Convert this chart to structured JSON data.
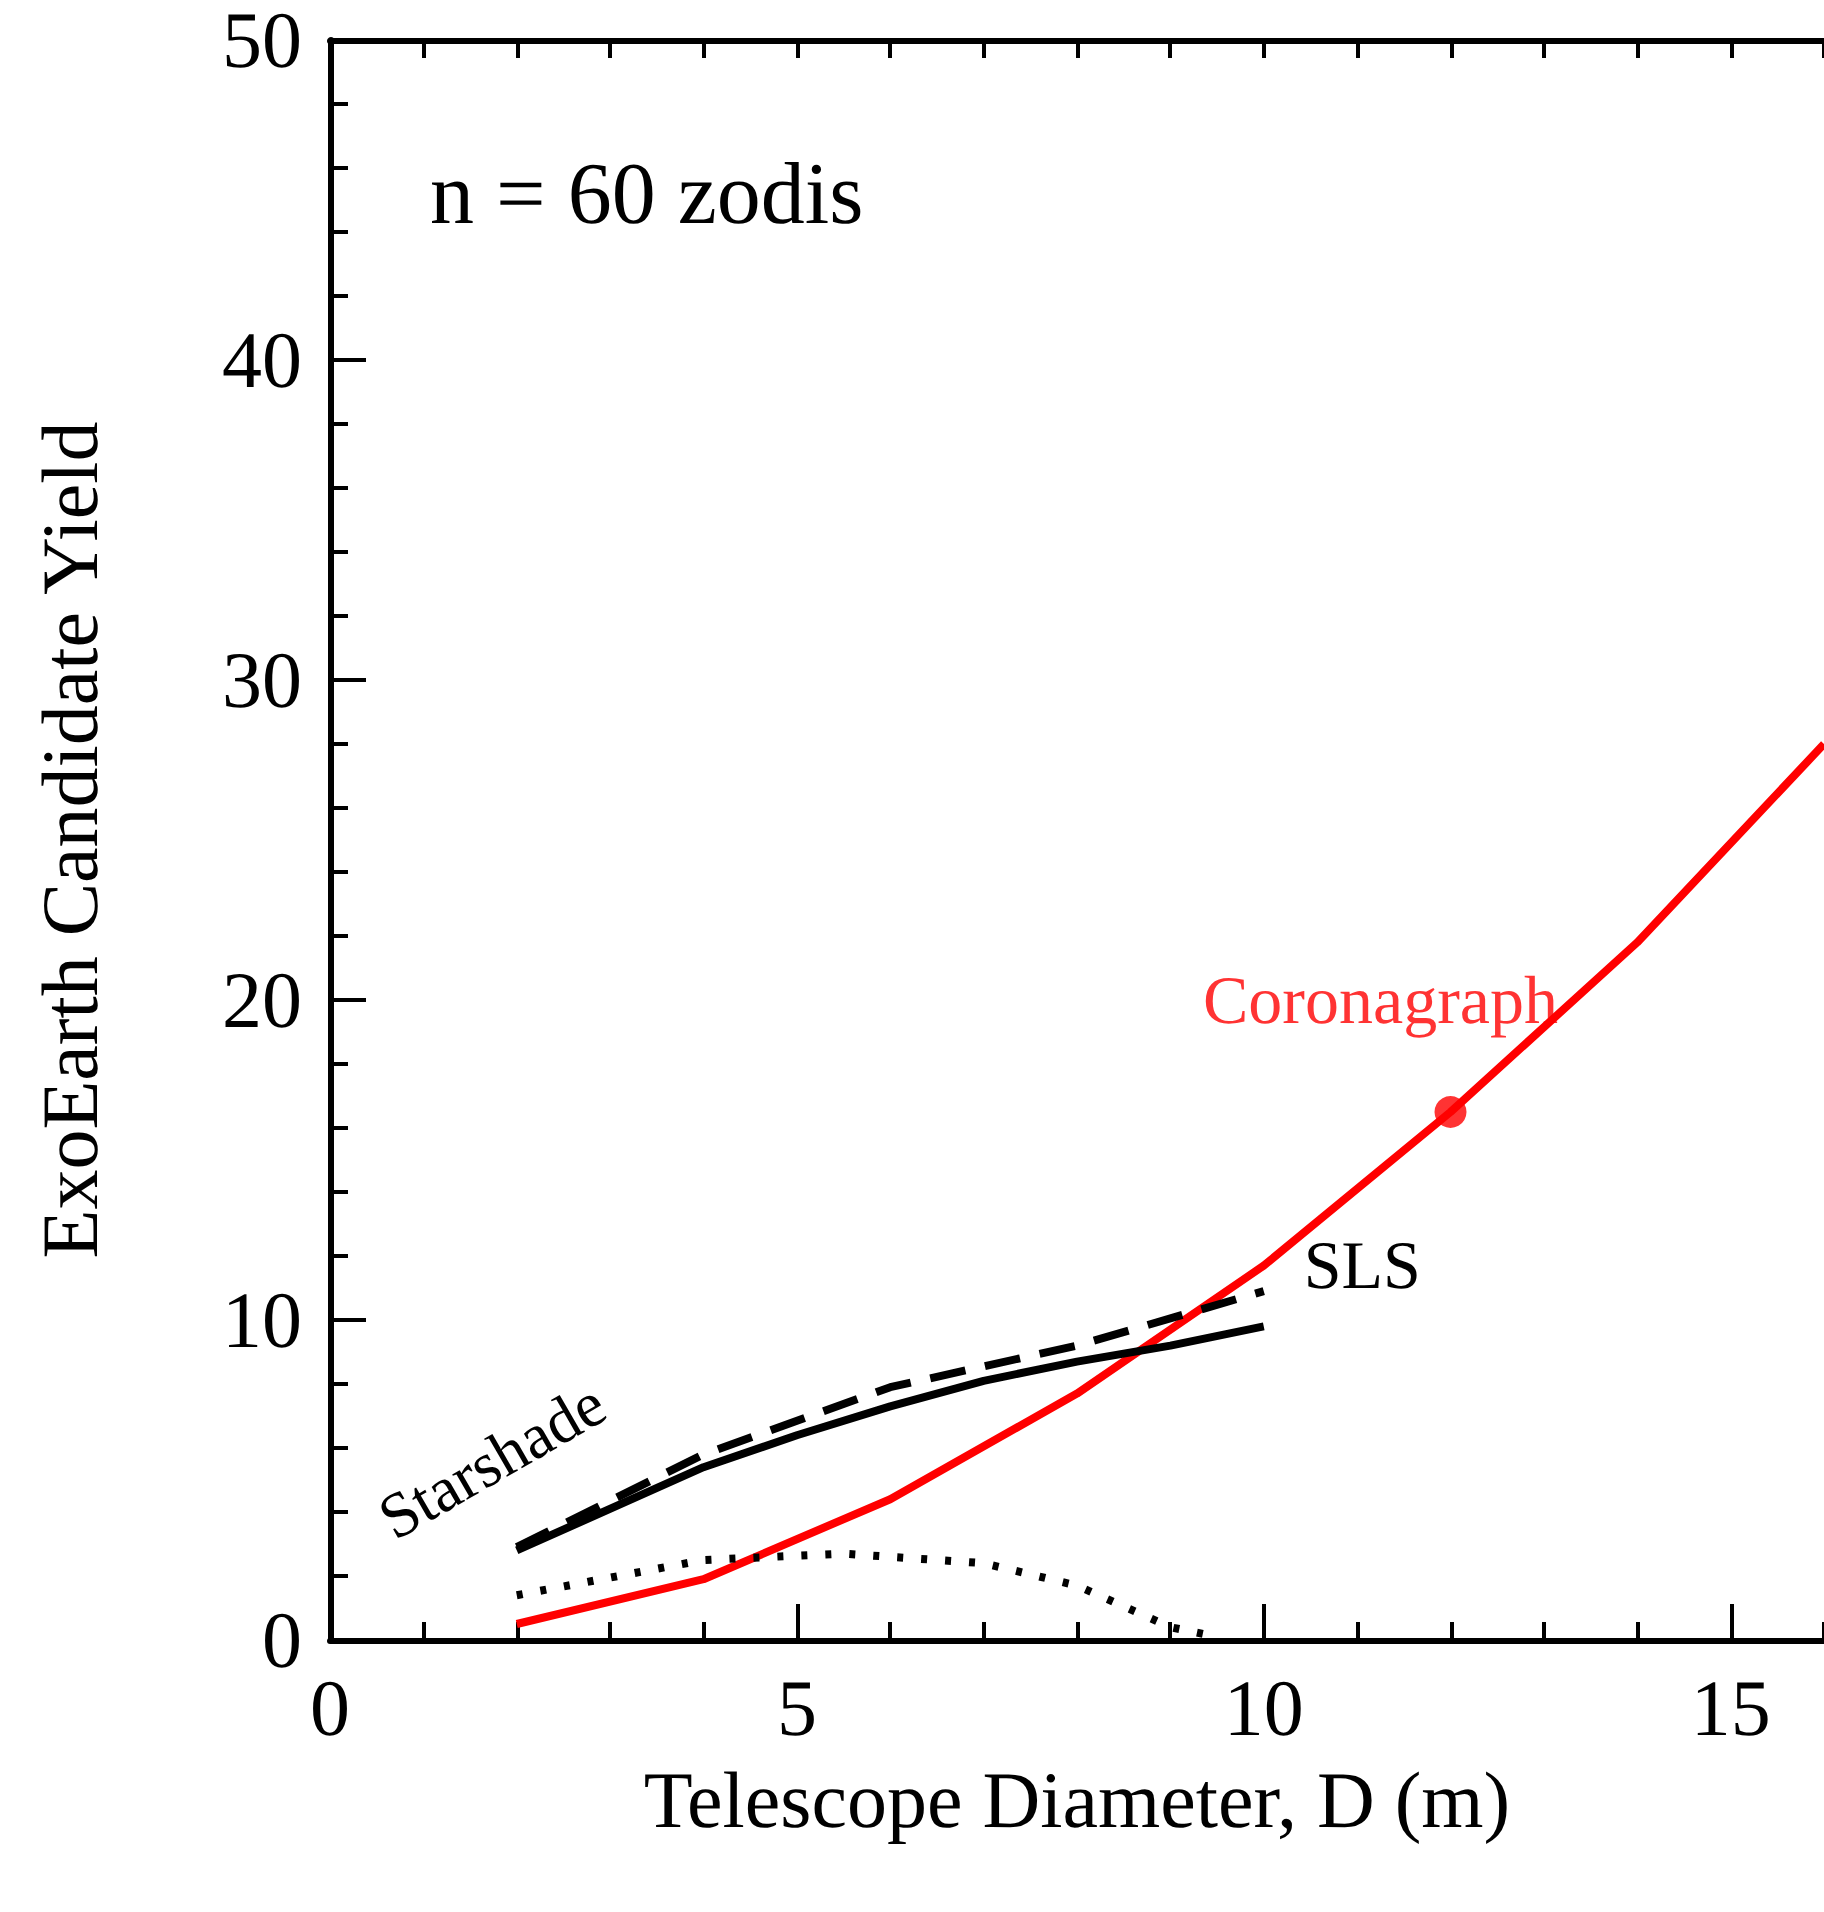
{
  "chart_data": {
    "type": "line",
    "xlabel": "Telescope Diameter, D (m)",
    "ylabel": "ExoEarth Candidate Yield",
    "xlim": [
      0,
      16
    ],
    "xticks": [
      0,
      5,
      10,
      15
    ],
    "ylim": [
      0,
      50
    ],
    "yticks": [
      0,
      10,
      20,
      30,
      40,
      50
    ],
    "grid": false,
    "legend": false,
    "marker": "none",
    "series": [
      {
        "color": "#ff0000",
        "x": [
          2,
          4,
          6,
          8,
          10,
          12,
          14,
          16
        ],
        "values": [
          0.5,
          1.9,
          4.4,
          7.7,
          11.7,
          16.5,
          21.8,
          28
        ]
      },
      {
        "type": "scatter",
        "name": "Coronagraph",
        "marker": "circle",
        "color": "#ff0000",
        "x": [
          12
        ],
        "values": [
          16.5
        ]
      },
      {
        "name": "SLS",
        "color": "#000000",
        "line_style": "dashed",
        "x": [
          2,
          4,
          6,
          8,
          10
        ],
        "values": [
          2.9,
          5.8,
          7.9,
          9.2,
          10.9
        ]
      },
      {
        "color": "#000000",
        "x": [
          2,
          4,
          5,
          6,
          7,
          8,
          9,
          10
        ],
        "values": [
          2.8,
          5.4,
          6.4,
          7.3,
          8.1,
          8.7,
          9.2,
          9.8
        ]
      },
      {
        "color": "#000000",
        "line_style": "dotted",
        "x": [
          2,
          4,
          5.5,
          7,
          8,
          9,
          9.5
        ],
        "values": [
          1.4,
          2.5,
          2.7,
          2.4,
          1.7,
          0.4,
          0.1
        ]
      }
    ],
    "annotations": [
      "n = 60 zodis",
      "Starshade"
    ]
  }
}
